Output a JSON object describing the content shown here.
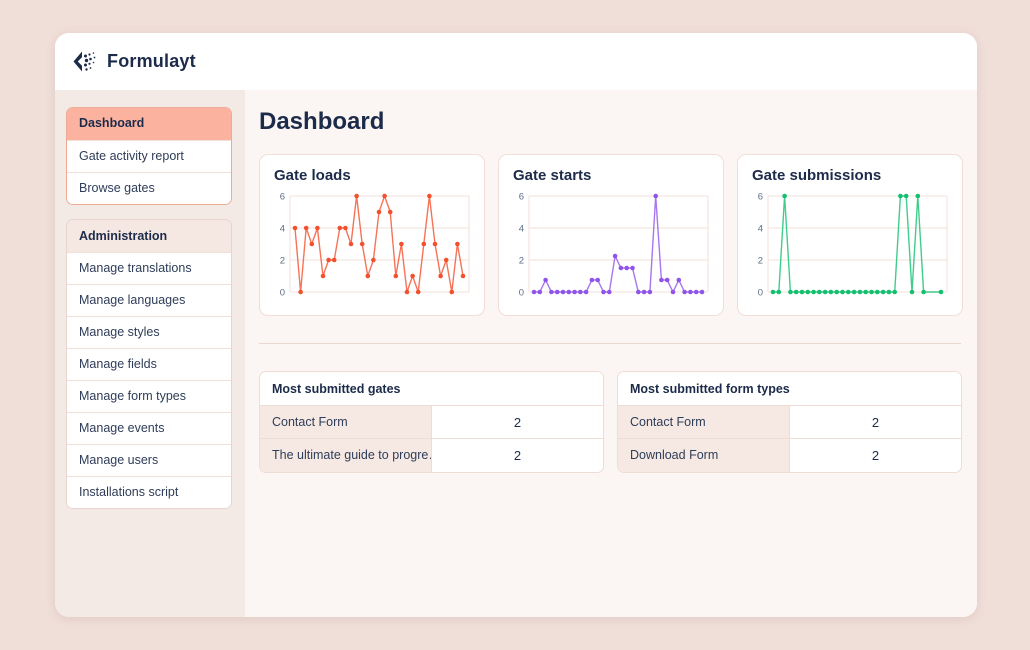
{
  "app": {
    "name": "Formulayt",
    "logo_icon": "formulayt-chevron-dots-icon"
  },
  "main": {
    "title": "Dashboard"
  },
  "sidebar": {
    "groups": [
      {
        "header": null,
        "items": [
          {
            "label": "Dashboard",
            "active": true
          },
          {
            "label": "Gate activity report",
            "active": false
          },
          {
            "label": "Browse gates",
            "active": false
          }
        ]
      },
      {
        "header": "Administration",
        "items": [
          {
            "label": "Manage translations",
            "active": false
          },
          {
            "label": "Manage languages",
            "active": false
          },
          {
            "label": "Manage styles",
            "active": false
          },
          {
            "label": "Manage fields",
            "active": false
          },
          {
            "label": "Manage form types",
            "active": false
          },
          {
            "label": "Manage events",
            "active": false
          },
          {
            "label": "Manage users",
            "active": false
          },
          {
            "label": "Installations script",
            "active": false
          }
        ]
      }
    ]
  },
  "chart_data": [
    {
      "type": "line",
      "title": "Gate loads",
      "color": "#f4502e",
      "yticks": [
        0,
        2,
        4,
        6
      ],
      "ylim": [
        0,
        6
      ],
      "grid": true,
      "legend": "none",
      "values": [
        4,
        0,
        4,
        3,
        4,
        1,
        2,
        2,
        4,
        4,
        3,
        6,
        3,
        1,
        2,
        5,
        6,
        5,
        1,
        3,
        0,
        1,
        0,
        3,
        6,
        3,
        1,
        2,
        0,
        3,
        1
      ]
    },
    {
      "type": "line",
      "title": "Gate starts",
      "color": "#9055e8",
      "yticks": [
        0,
        2,
        4,
        6
      ],
      "ylim": [
        0,
        6
      ],
      "grid": true,
      "legend": "none",
      "values": [
        0,
        0,
        0.75,
        0,
        0,
        0,
        0,
        0,
        0,
        0,
        0.75,
        0.75,
        0,
        0,
        2.25,
        1.5,
        1.5,
        1.5,
        0,
        0,
        0,
        6,
        0.75,
        0.75,
        0,
        0.75,
        0,
        0,
        0,
        0
      ]
    },
    {
      "type": "line",
      "title": "Gate submissions",
      "color": "#12c06e",
      "yticks": [
        0,
        2,
        4,
        6
      ],
      "ylim": [
        0,
        6
      ],
      "grid": true,
      "legend": "none",
      "values": [
        0,
        0,
        6,
        0,
        0,
        0,
        0,
        0,
        0,
        0,
        0,
        0,
        0,
        0,
        0,
        0,
        0,
        0,
        0,
        0,
        0,
        0,
        6,
        6,
        0,
        6,
        0,
        null,
        null,
        0
      ]
    }
  ],
  "tables": [
    {
      "title": "Most submitted gates",
      "rows": [
        {
          "label": "Contact Form",
          "value": "2"
        },
        {
          "label": "The ultimate guide to progre…",
          "value": "2"
        }
      ]
    },
    {
      "title": "Most submitted form types",
      "rows": [
        {
          "label": "Contact Form",
          "value": "2"
        },
        {
          "label": "Download Form",
          "value": "2"
        }
      ]
    }
  ],
  "colors": {
    "page_background": "#f0ded9",
    "sidebar_background": "#f3e9e5",
    "content_background": "#fbf6f3",
    "active_item": "#fbb3a0",
    "navy_text": "#1c2b4a",
    "chart_red": "#f4502e",
    "chart_purple": "#9055e8",
    "chart_green": "#12c06e"
  }
}
